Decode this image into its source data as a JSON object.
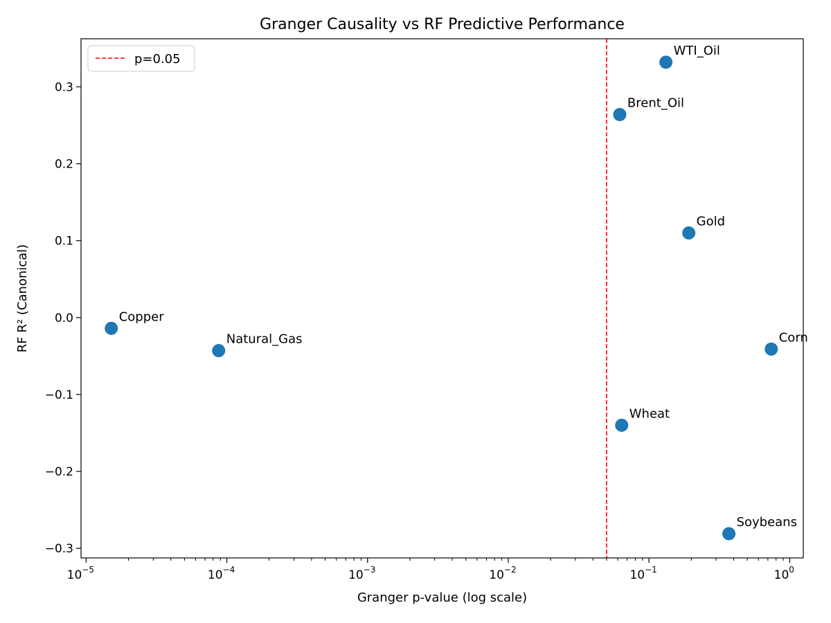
{
  "chart_data": {
    "type": "scatter",
    "title": "Granger Causality vs RF Predictive Performance",
    "xlabel": "Granger p-value (log scale)",
    "ylabel": "RF R² (Canonical)",
    "x_scale": "log",
    "xlim": [
      9.2e-06,
      1.25
    ],
    "ylim": [
      -0.3125,
      0.3625
    ],
    "grid": false,
    "legend_position": "top-left",
    "x_ticks": [
      {
        "value": 1e-05,
        "base": "10",
        "exp": "−5"
      },
      {
        "value": 0.0001,
        "base": "10",
        "exp": "−4"
      },
      {
        "value": 0.001,
        "base": "10",
        "exp": "−3"
      },
      {
        "value": 0.01,
        "base": "10",
        "exp": "−2"
      },
      {
        "value": 0.1,
        "base": "10",
        "exp": "−1"
      },
      {
        "value": 1,
        "base": "10",
        "exp": "0"
      }
    ],
    "y_ticks": [
      {
        "value": 0.3,
        "label": "0.3"
      },
      {
        "value": 0.2,
        "label": "0.2"
      },
      {
        "value": 0.1,
        "label": "0.1"
      },
      {
        "value": 0.0,
        "label": "0.0"
      },
      {
        "value": -0.1,
        "label": "−0.1"
      },
      {
        "value": -0.2,
        "label": "−0.2"
      },
      {
        "value": -0.3,
        "label": "−0.3"
      }
    ],
    "points": [
      {
        "name": "WTI_Oil",
        "x": 0.132,
        "y": 0.332
      },
      {
        "name": "Brent_Oil",
        "x": 0.062,
        "y": 0.264
      },
      {
        "name": "Gold",
        "x": 0.192,
        "y": 0.11
      },
      {
        "name": "Copper",
        "x": 1.51e-05,
        "y": -0.014
      },
      {
        "name": "Natural_Gas",
        "x": 8.75e-05,
        "y": -0.043
      },
      {
        "name": "Corn",
        "x": 0.74,
        "y": -0.041
      },
      {
        "name": "Wheat",
        "x": 0.064,
        "y": -0.14
      },
      {
        "name": "Soybeans",
        "x": 0.37,
        "y": -0.281
      }
    ],
    "reference_line": {
      "axis": "x",
      "value": 0.05,
      "label": "p=0.05",
      "color": "#ff0000"
    },
    "marker_color": "#1f77b4"
  }
}
